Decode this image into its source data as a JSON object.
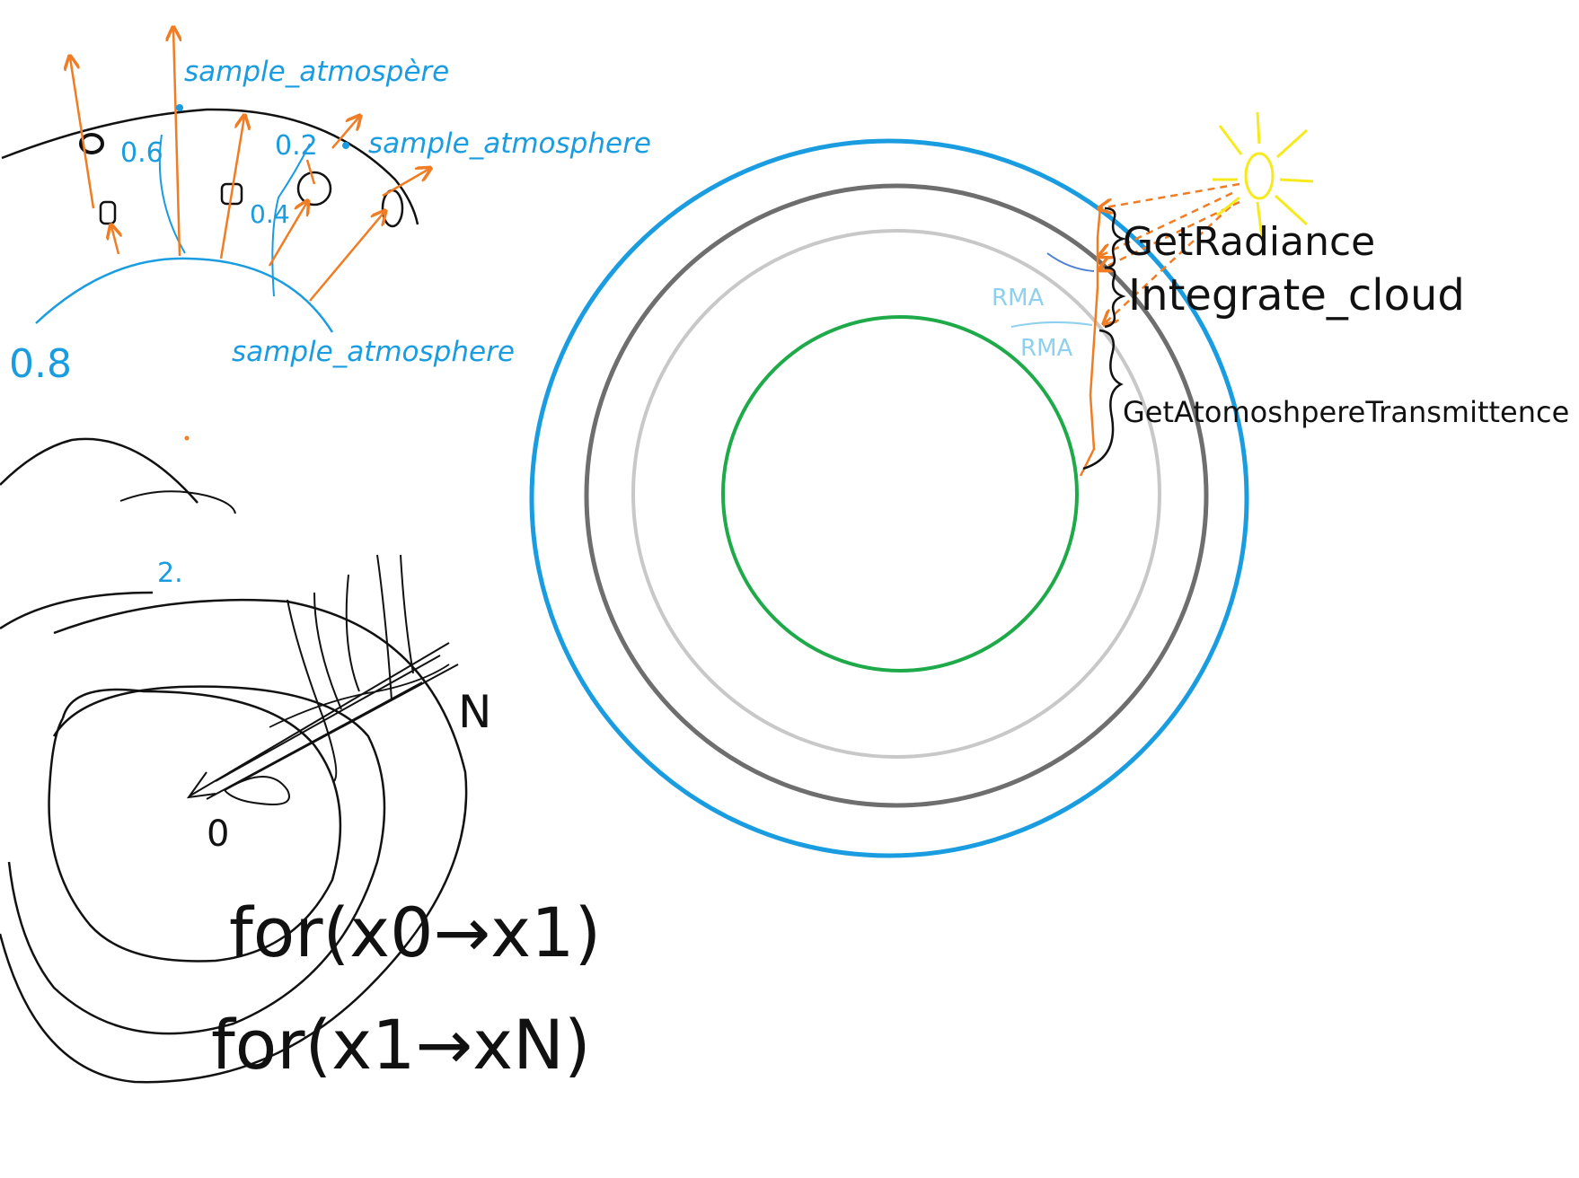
{
  "colors": {
    "blue": "#1a9ce0",
    "orange": "#f07d24",
    "black": "#111111",
    "green": "#1faa4a",
    "dark_gray": "#6e6e6e",
    "light_gray": "#c8c8c8",
    "sun_yellow": "#f6ea1e",
    "light_blue": "#8fd0ee"
  },
  "top_left_sketch": {
    "labels": {
      "sample_top": "sample_atmospère",
      "sample_right": "sample_atmosphere",
      "sample_bottom": "sample_atmosphere"
    },
    "values": {
      "v06": "0.6",
      "v02": "0.2",
      "v04": "0.4",
      "v08": "0.8"
    }
  },
  "bottom_left_sketch": {
    "marker": "2.",
    "zero": "0",
    "n_label": "N",
    "loop1": "for(x0→x1)",
    "loop2": "for(x1→xN)"
  },
  "planet_diagram": {
    "labels": {
      "get_radiance": "GetRadiance",
      "integrate_cloud": "Integrate_cloud",
      "get_transmittance": "GetAtomoshpereTransmittence",
      "rm1": "RMA",
      "rm2": "RMA"
    }
  }
}
